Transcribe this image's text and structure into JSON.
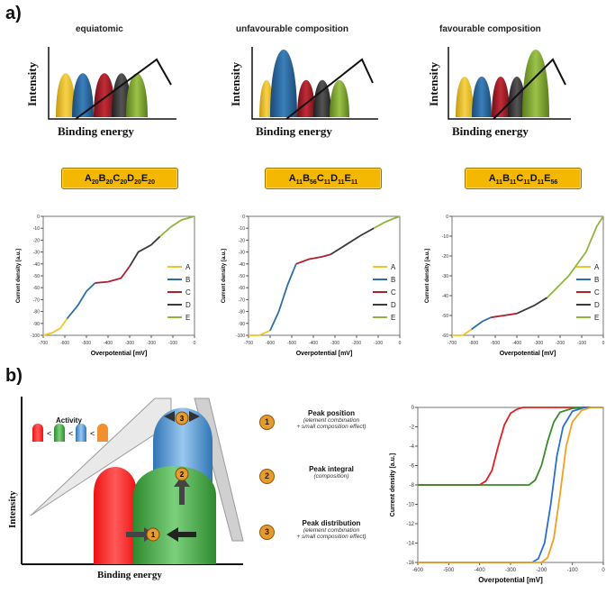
{
  "panel_a": {
    "label": "a)",
    "columns": [
      {
        "title": "equiatomic"
      },
      {
        "title": "unfavourable composition"
      },
      {
        "title": "favourable composition"
      }
    ],
    "xps_ylabel": "Intensity",
    "xps_xlabel": "Binding energy",
    "formulas": [
      {
        "parts": [
          [
            "A",
            "20"
          ],
          [
            "B",
            "20"
          ],
          [
            "C",
            "20"
          ],
          [
            "D",
            "20"
          ],
          [
            "E",
            "20"
          ]
        ]
      },
      {
        "parts": [
          [
            "A",
            "11"
          ],
          [
            "B",
            "56"
          ],
          [
            "C",
            "11"
          ],
          [
            "D",
            "11"
          ],
          [
            "E",
            "11"
          ]
        ]
      },
      {
        "parts": [
          [
            "A",
            "11"
          ],
          [
            "B",
            "11"
          ],
          [
            "C",
            "11"
          ],
          [
            "D",
            "11"
          ],
          [
            "E",
            "56"
          ]
        ]
      }
    ],
    "curve_legend": [
      "A",
      "B",
      "C",
      "D",
      "E"
    ],
    "curve_ylabel": "Current density [a.u.]",
    "curve_xlabel": "Overpotential [mV]"
  },
  "panel_b": {
    "label": "b)",
    "activity_label": "Activity",
    "ylabel": "Intensity",
    "xlabel": "Binding energy",
    "items": [
      {
        "num": "1",
        "title": "Peak position",
        "sub1": "(element combination",
        "sub2": "+ small composition effect)"
      },
      {
        "num": "2",
        "title": "Peak integral",
        "sub1": "(composition)",
        "sub2": ""
      },
      {
        "num": "3",
        "title": "Peak distribution",
        "sub1": "(element combination",
        "sub2": "+ small composition effect)"
      }
    ]
  },
  "colors": {
    "A": "#f2c52a",
    "B": "#2a6fa8",
    "C": "#b01f2c",
    "D": "#3a3a3a",
    "E": "#8fb53a"
  },
  "chart_data": [
    {
      "type": "line",
      "title": "equiatomic",
      "xlabel": "Overpotential [mV]",
      "ylabel": "Current density [a.u.]",
      "xlim": [
        -700,
        0
      ],
      "ylim": [
        -100,
        0
      ],
      "x_ticks": [
        "-700",
        "-600",
        "-500",
        "-400",
        "-300",
        "-200",
        "-100",
        "0"
      ],
      "y_ticks": [
        "0",
        "-10",
        "-20",
        "-30",
        "-40",
        "-50",
        "-60",
        "-70",
        "-80",
        "-90",
        "-100"
      ],
      "series": [
        {
          "name": "A",
          "x": [
            -700,
            -660,
            -620,
            -590
          ],
          "y": [
            -100,
            -98,
            -94,
            -86
          ]
        },
        {
          "name": "B",
          "x": [
            -590,
            -540,
            -500,
            -460
          ],
          "y": [
            -86,
            -75,
            -63,
            -56
          ]
        },
        {
          "name": "C",
          "x": [
            -460,
            -400,
            -340,
            -300
          ],
          "y": [
            -56,
            -55,
            -52,
            -42
          ]
        },
        {
          "name": "D",
          "x": [
            -300,
            -260,
            -200,
            -160
          ],
          "y": [
            -42,
            -30,
            -24,
            -17
          ]
        },
        {
          "name": "E",
          "x": [
            -160,
            -110,
            -60,
            0
          ],
          "y": [
            -17,
            -9,
            -3,
            0
          ]
        }
      ]
    },
    {
      "type": "line",
      "title": "unfavourable composition",
      "xlabel": "Overpotential [mV]",
      "ylabel": "Current density [a.u.]",
      "xlim": [
        -700,
        0
      ],
      "ylim": [
        -100,
        0
      ],
      "x_ticks": [
        "-700",
        "-600",
        "-500",
        "-400",
        "-300",
        "-200",
        "-100",
        "0"
      ],
      "y_ticks": [
        "0",
        "-10",
        "-20",
        "-30",
        "-40",
        "-50",
        "-60",
        "-70",
        "-80",
        "-90",
        "-100"
      ],
      "series": [
        {
          "name": "A",
          "x": [
            -700,
            -650,
            -600
          ],
          "y": [
            -100,
            -100,
            -96
          ]
        },
        {
          "name": "B",
          "x": [
            -600,
            -560,
            -520,
            -480
          ],
          "y": [
            -96,
            -80,
            -58,
            -40
          ]
        },
        {
          "name": "C",
          "x": [
            -480,
            -420,
            -360,
            -320
          ],
          "y": [
            -40,
            -36,
            -34,
            -32
          ]
        },
        {
          "name": "D",
          "x": [
            -320,
            -250,
            -180,
            -120
          ],
          "y": [
            -32,
            -24,
            -16,
            -10
          ]
        },
        {
          "name": "E",
          "x": [
            -120,
            -70,
            -30,
            0
          ],
          "y": [
            -10,
            -5,
            -2,
            0
          ]
        }
      ]
    },
    {
      "type": "line",
      "title": "favourable composition",
      "xlabel": "Overpotential [mV]",
      "ylabel": "Current density [a.u.]",
      "xlim": [
        -700,
        0
      ],
      "ylim": [
        -60,
        0
      ],
      "x_ticks": [
        "-700",
        "-600",
        "-500",
        "-400",
        "-300",
        "-200",
        "-100",
        "0"
      ],
      "y_ticks": [
        "0",
        "-10",
        "-20",
        "-30",
        "-40",
        "-50",
        "-60"
      ],
      "series": [
        {
          "name": "A",
          "x": [
            -700,
            -650,
            -610
          ],
          "y": [
            -60,
            -60,
            -57
          ]
        },
        {
          "name": "B",
          "x": [
            -610,
            -560,
            -520
          ],
          "y": [
            -57,
            -53,
            -51
          ]
        },
        {
          "name": "C",
          "x": [
            -520,
            -460,
            -400
          ],
          "y": [
            -51,
            -50,
            -49
          ]
        },
        {
          "name": "D",
          "x": [
            -400,
            -320,
            -260
          ],
          "y": [
            -49,
            -45,
            -41
          ]
        },
        {
          "name": "E",
          "x": [
            -260,
            -160,
            -80,
            -30,
            0
          ],
          "y": [
            -41,
            -30,
            -18,
            -5,
            0
          ]
        }
      ]
    },
    {
      "type": "line",
      "title": "",
      "xlabel": "Overpotential [mV]",
      "ylabel": "Current density [a.u.]",
      "xlim": [
        -600,
        0
      ],
      "ylim": [
        -16,
        0
      ],
      "x_ticks": [
        "-600",
        "-500",
        "-400",
        "-300",
        "-200",
        "-100",
        "0"
      ],
      "y_ticks": [
        "0",
        "-2",
        "-4",
        "-6",
        "-8",
        "-10",
        "-12",
        "-14",
        "-16"
      ],
      "series": [
        {
          "name": "red",
          "color": "#e02020",
          "x": [
            -600,
            -400,
            -380,
            -360,
            -340,
            -320,
            -300,
            -280,
            -260,
            -200,
            0
          ],
          "y": [
            -8,
            -8,
            -7.6,
            -6.5,
            -4,
            -1.8,
            -0.6,
            -0.2,
            0,
            0,
            0
          ]
        },
        {
          "name": "green",
          "color": "#3a8a2a",
          "x": [
            -600,
            -240,
            -220,
            -200,
            -180,
            -160,
            -140,
            -100,
            -60,
            0
          ],
          "y": [
            -8,
            -8,
            -7.5,
            -6,
            -3.5,
            -1.5,
            -0.5,
            -0.1,
            0,
            0
          ]
        },
        {
          "name": "blue",
          "color": "#2a6fd0",
          "x": [
            -600,
            -230,
            -210,
            -190,
            -170,
            -150,
            -130,
            -100,
            -60,
            0
          ],
          "y": [
            -16,
            -16,
            -15.6,
            -14,
            -10,
            -5,
            -2,
            -0.4,
            0,
            0
          ]
        },
        {
          "name": "orange",
          "color": "#f0a020",
          "x": [
            -600,
            -200,
            -180,
            -160,
            -140,
            -120,
            -100,
            -70,
            -40,
            0
          ],
          "y": [
            -16,
            -16,
            -15.5,
            -13.5,
            -9,
            -4,
            -1.5,
            -0.3,
            0,
            0
          ]
        }
      ]
    }
  ]
}
